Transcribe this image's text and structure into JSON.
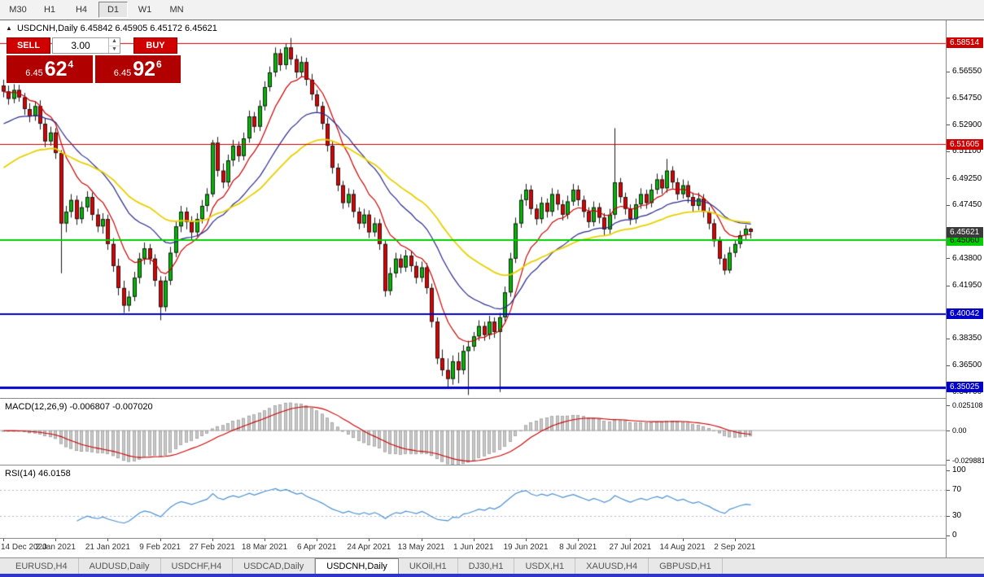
{
  "toolbar": {
    "timeframes": [
      "M30",
      "H1",
      "H4",
      "D1",
      "W1",
      "MN"
    ],
    "active": "D1"
  },
  "chart_header": {
    "collapse_icon": "▲",
    "text": "USDCNH,Daily 6.45842 6.45905 6.45172 6.45621"
  },
  "trade_panel": {
    "sell_label": "SELL",
    "buy_label": "BUY",
    "volume": "3.00",
    "sell_price_prefix": "6.45",
    "sell_price_main": "62",
    "sell_price_sup": "4",
    "buy_price_prefix": "6.45",
    "buy_price_main": "92",
    "buy_price_sup": "6"
  },
  "indicators": {
    "macd_label": "MACD(12,26,9) -0.006807 -0.007020",
    "rsi_label": "RSI(14) 46.0158"
  },
  "tabs": [
    "EURUSD,H4",
    "AUDUSD,Daily",
    "USDCHF,H4",
    "USDCAD,Daily",
    "USDCNH,Daily",
    "UKOil,H1",
    "DJ30,H1",
    "USDX,H1",
    "XAUUSD,H4",
    "GBPUSD,H1"
  ],
  "active_tab": "USDCNH,Daily",
  "colors": {
    "candle_up": "#00b800",
    "candle_down": "#e00000",
    "candle_outline": "#1a1a1a",
    "wick": "#1a1a1a",
    "macd_hist_fill": "#c9c9c9",
    "macd_hist_stroke": "#949494",
    "macd_signal": "#cc0000",
    "macd_zero": "#aaaaaa",
    "rsi_line": "#4a90d2",
    "rsi_levels": "#b4b4cc",
    "sell_button": "#d10000",
    "buy_button": "#d10000",
    "price_box": "#b00000",
    "current_badge_bg": "#3a3a3a",
    "taskbar_blue": "#2a35d4"
  },
  "chart_data": {
    "type": "candlestick",
    "symbol": "USDCNH",
    "timeframe": "Daily",
    "ohlc_display": {
      "open": "6.45842",
      "high": "6.45905",
      "low": "6.45172",
      "close": "6.45621"
    },
    "price_axis": {
      "min": 6.343,
      "max": 6.6005,
      "ticks": [
        {
          "price": 6.5655,
          "label": "6.56550"
        },
        {
          "price": 6.5475,
          "label": "6.54750"
        },
        {
          "price": 6.529,
          "label": "6.52900"
        },
        {
          "price": 6.511,
          "label": "6.51100"
        },
        {
          "price": 6.4925,
          "label": "6.49250"
        },
        {
          "price": 6.4745,
          "label": "6.47450"
        },
        {
          "price": 6.438,
          "label": "6.43800"
        },
        {
          "price": 6.4195,
          "label": "6.41950"
        },
        {
          "price": 6.3835,
          "label": "6.38350"
        },
        {
          "price": 6.365,
          "label": "6.36500"
        },
        {
          "price": 6.347,
          "label": "6.34700"
        }
      ]
    },
    "hlines": [
      {
        "price": 6.58514,
        "label": "6.58514",
        "color": "#cc0000",
        "width": 1,
        "text": "#ffffff"
      },
      {
        "price": 6.51605,
        "label": "6.51605",
        "color": "#cc0000",
        "width": 1,
        "text": "#ffffff"
      },
      {
        "price": 6.4506,
        "label": "6.45060",
        "color": "#00ce00",
        "width": 2,
        "text": "#000000"
      },
      {
        "price": 6.40042,
        "label": "6.40042",
        "color": "#0000c8",
        "width": 2,
        "text": "#ffffff"
      },
      {
        "price": 6.35025,
        "label": "6.35025",
        "color": "#0000c8",
        "width": 3,
        "text": "#ffffff"
      }
    ],
    "current_badge": {
      "price": 6.45621,
      "label": "6.45621"
    },
    "dates": [
      "14 Dec 2020",
      "2 Jan 2021",
      "21 Jan 2021",
      "9 Feb 2021",
      "27 Feb 2021",
      "18 Mar 2021",
      "6 Apr 2021",
      "24 Apr 2021",
      "13 May 2021",
      "1 Jun 2021",
      "19 Jun 2021",
      "8 Jul 2021",
      "27 Jul 2021",
      "14 Aug 2021",
      "2 Sep 2021"
    ],
    "date_step": 10,
    "ma": [
      {
        "period": 9,
        "color": "#cc0000",
        "width": 1.2,
        "seed": null
      },
      {
        "period": 22,
        "color": "#28288c",
        "width": 1.2,
        "seed": 6.53
      },
      {
        "period": 40,
        "color": "#e8d000",
        "width": 1.8,
        "seed": 6.5
      }
    ],
    "macd": {
      "fast": 12,
      "slow": 26,
      "signal": 9,
      "display": "-0.006807 -0.007020",
      "range": [
        -0.034,
        0.032
      ],
      "axis": [
        {
          "v": 0.025108,
          "label": "0.025108"
        },
        {
          "v": 0.0,
          "label": "0.00"
        },
        {
          "v": -0.029881,
          "label": "-0.029881"
        }
      ]
    },
    "rsi": {
      "period": 14,
      "value": "46.0158",
      "levels": [
        70,
        30
      ],
      "axis": [
        {
          "v": 100,
          "label": "100"
        },
        {
          "v": 70,
          "label": "70"
        },
        {
          "v": 30,
          "label": "30"
        },
        {
          "v": 0,
          "label": "0"
        }
      ]
    },
    "candles": [
      [
        6.556,
        6.56,
        6.548,
        6.552
      ],
      [
        6.552,
        6.556,
        6.543,
        6.547
      ],
      [
        6.547,
        6.557,
        6.544,
        6.553
      ],
      [
        6.553,
        6.5565,
        6.545,
        6.548
      ],
      [
        6.548,
        6.551,
        6.536,
        6.54
      ],
      [
        6.54,
        6.544,
        6.531,
        6.535
      ],
      [
        6.535,
        6.545,
        6.532,
        6.542
      ],
      [
        6.542,
        6.546,
        6.526,
        6.53
      ],
      [
        6.53,
        6.534,
        6.514,
        6.518
      ],
      [
        6.518,
        6.528,
        6.515,
        6.524
      ],
      [
        6.524,
        6.527,
        6.506,
        6.51
      ],
      [
        6.51,
        6.512,
        6.428,
        6.462
      ],
      [
        6.462,
        6.474,
        6.456,
        6.47
      ],
      [
        6.47,
        6.482,
        6.466,
        6.478
      ],
      [
        6.478,
        6.481,
        6.461,
        6.465
      ],
      [
        6.465,
        6.477,
        6.462,
        6.473
      ],
      [
        6.473,
        6.484,
        6.47,
        6.48
      ],
      [
        6.48,
        6.483,
        6.464,
        6.468
      ],
      [
        6.468,
        6.472,
        6.456,
        6.46
      ],
      [
        6.46,
        6.469,
        6.455,
        6.465
      ],
      [
        6.465,
        6.468,
        6.444,
        6.448
      ],
      [
        6.448,
        6.452,
        6.429,
        6.433
      ],
      [
        6.433,
        6.438,
        6.413,
        6.418
      ],
      [
        6.418,
        6.423,
        6.401,
        6.406
      ],
      [
        6.406,
        6.416,
        6.402,
        6.412
      ],
      [
        6.412,
        6.429,
        6.409,
        6.425
      ],
      [
        6.425,
        6.442,
        6.421,
        6.438
      ],
      [
        6.438,
        6.449,
        6.434,
        6.445
      ],
      [
        6.445,
        6.448,
        6.434,
        6.438
      ],
      [
        6.438,
        6.441,
        6.419,
        6.423
      ],
      [
        6.423,
        6.426,
        6.396,
        6.405
      ],
      [
        6.405,
        6.426,
        6.402,
        6.423
      ],
      [
        6.423,
        6.446,
        6.42,
        6.442
      ],
      [
        6.442,
        6.464,
        6.439,
        6.46
      ],
      [
        6.46,
        6.474,
        6.456,
        6.47
      ],
      [
        6.47,
        6.473,
        6.458,
        6.463
      ],
      [
        6.463,
        6.467,
        6.451,
        6.456
      ],
      [
        6.456,
        6.469,
        6.453,
        6.465
      ],
      [
        6.465,
        6.478,
        6.462,
        6.474
      ],
      [
        6.474,
        6.486,
        6.47,
        6.482
      ],
      [
        6.482,
        6.519,
        6.48,
        6.517
      ],
      [
        6.517,
        6.521,
        6.494,
        6.498
      ],
      [
        6.498,
        6.503,
        6.486,
        6.49
      ],
      [
        6.49,
        6.509,
        6.487,
        6.505
      ],
      [
        6.505,
        6.519,
        6.501,
        6.515
      ],
      [
        6.515,
        6.518,
        6.504,
        6.508
      ],
      [
        6.508,
        6.524,
        6.505,
        6.52
      ],
      [
        6.52,
        6.539,
        6.517,
        6.535
      ],
      [
        6.535,
        6.538,
        6.524,
        6.528
      ],
      [
        6.528,
        6.546,
        6.525,
        6.542
      ],
      [
        6.542,
        6.559,
        6.539,
        6.555
      ],
      [
        6.555,
        6.569,
        6.552,
        6.565
      ],
      [
        6.565,
        6.582,
        6.562,
        6.578
      ],
      [
        6.578,
        6.581,
        6.566,
        6.57
      ],
      [
        6.57,
        6.585,
        6.567,
        6.582
      ],
      [
        6.582,
        6.5885,
        6.57,
        6.574
      ],
      [
        6.574,
        6.577,
        6.561,
        6.565
      ],
      [
        6.565,
        6.576,
        6.562,
        6.572
      ],
      [
        6.572,
        6.575,
        6.556,
        6.56
      ],
      [
        6.56,
        6.564,
        6.546,
        6.55
      ],
      [
        6.55,
        6.553,
        6.538,
        6.542
      ],
      [
        6.542,
        6.545,
        6.526,
        6.53
      ],
      [
        6.53,
        6.534,
        6.511,
        6.515
      ],
      [
        6.515,
        6.518,
        6.496,
        6.5
      ],
      [
        6.5,
        6.503,
        6.484,
        6.488
      ],
      [
        6.488,
        6.491,
        6.472,
        6.476
      ],
      [
        6.476,
        6.486,
        6.473,
        6.482
      ],
      [
        6.482,
        6.485,
        6.466,
        6.47
      ],
      [
        6.47,
        6.473,
        6.458,
        6.462
      ],
      [
        6.462,
        6.472,
        6.459,
        6.468
      ],
      [
        6.468,
        6.471,
        6.452,
        6.456
      ],
      [
        6.456,
        6.466,
        6.453,
        6.462
      ],
      [
        6.462,
        6.465,
        6.444,
        6.448
      ],
      [
        6.448,
        6.451,
        6.412,
        6.416
      ],
      [
        6.416,
        6.432,
        6.413,
        6.428
      ],
      [
        6.428,
        6.442,
        6.425,
        6.438
      ],
      [
        6.438,
        6.441,
        6.428,
        6.432
      ],
      [
        6.432,
        6.444,
        6.429,
        6.44
      ],
      [
        6.44,
        6.443,
        6.429,
        6.433
      ],
      [
        6.433,
        6.436,
        6.421,
        6.425
      ],
      [
        6.425,
        6.436,
        6.422,
        6.432
      ],
      [
        6.432,
        6.435,
        6.414,
        6.418
      ],
      [
        6.418,
        6.421,
        6.391,
        6.395
      ],
      [
        6.395,
        6.398,
        6.366,
        6.37
      ],
      [
        6.37,
        6.376,
        6.358,
        6.362
      ],
      [
        6.362,
        6.37,
        6.3505,
        6.356
      ],
      [
        6.356,
        6.372,
        6.352,
        6.368
      ],
      [
        6.368,
        6.374,
        6.353,
        6.362
      ],
      [
        6.362,
        6.379,
        6.359,
        6.375
      ],
      [
        6.375,
        6.382,
        6.345,
        6.378
      ],
      [
        6.378,
        6.388,
        6.375,
        6.385
      ],
      [
        6.385,
        6.396,
        6.382,
        6.392
      ],
      [
        6.392,
        6.395,
        6.382,
        6.386
      ],
      [
        6.386,
        6.399,
        6.383,
        6.395
      ],
      [
        6.395,
        6.398,
        6.384,
        6.388
      ],
      [
        6.388,
        6.401,
        6.347,
        6.398
      ],
      [
        6.398,
        6.419,
        6.395,
        6.415
      ],
      [
        6.415,
        6.442,
        6.412,
        6.438
      ],
      [
        6.438,
        6.466,
        6.435,
        6.462
      ],
      [
        6.462,
        6.482,
        6.459,
        6.478
      ],
      [
        6.478,
        6.489,
        6.474,
        6.485
      ],
      [
        6.485,
        6.488,
        6.468,
        6.472
      ],
      [
        6.472,
        6.475,
        6.461,
        6.465
      ],
      [
        6.465,
        6.48,
        6.462,
        6.476
      ],
      [
        6.476,
        6.479,
        6.466,
        6.47
      ],
      [
        6.47,
        6.486,
        6.467,
        6.482
      ],
      [
        6.482,
        6.485,
        6.471,
        6.475
      ],
      [
        6.475,
        6.478,
        6.464,
        6.468
      ],
      [
        6.468,
        6.481,
        6.465,
        6.477
      ],
      [
        6.477,
        6.489,
        6.474,
        6.485
      ],
      [
        6.485,
        6.488,
        6.474,
        6.478
      ],
      [
        6.478,
        6.481,
        6.466,
        6.47
      ],
      [
        6.47,
        6.473,
        6.459,
        6.463
      ],
      [
        6.463,
        6.477,
        6.46,
        6.473
      ],
      [
        6.473,
        6.476,
        6.462,
        6.466
      ],
      [
        6.466,
        6.469,
        6.454,
        6.458
      ],
      [
        6.458,
        6.472,
        6.455,
        6.468
      ],
      [
        6.468,
        6.527,
        6.465,
        6.49
      ],
      [
        6.49,
        6.493,
        6.476,
        6.48
      ],
      [
        6.48,
        6.483,
        6.468,
        6.472
      ],
      [
        6.472,
        6.475,
        6.461,
        6.465
      ],
      [
        6.465,
        6.479,
        6.462,
        6.475
      ],
      [
        6.475,
        6.486,
        6.472,
        6.482
      ],
      [
        6.482,
        6.485,
        6.472,
        6.476
      ],
      [
        6.476,
        6.489,
        6.473,
        6.485
      ],
      [
        6.485,
        6.496,
        6.482,
        6.492
      ],
      [
        6.492,
        6.495,
        6.482,
        6.486
      ],
      [
        6.486,
        6.506,
        6.483,
        6.498
      ],
      [
        6.498,
        6.501,
        6.486,
        6.49
      ],
      [
        6.49,
        6.493,
        6.478,
        6.482
      ],
      [
        6.482,
        6.492,
        6.479,
        6.488
      ],
      [
        6.488,
        6.491,
        6.476,
        6.48
      ],
      [
        6.48,
        6.483,
        6.47,
        6.474
      ],
      [
        6.474,
        6.483,
        6.471,
        6.479
      ],
      [
        6.479,
        6.482,
        6.466,
        6.47
      ],
      [
        6.47,
        6.473,
        6.458,
        6.462
      ],
      [
        6.462,
        6.465,
        6.446,
        6.45
      ],
      [
        6.45,
        6.453,
        6.434,
        6.438
      ],
      [
        6.438,
        6.441,
        6.427,
        6.43
      ],
      [
        6.43,
        6.446,
        6.428,
        6.442
      ],
      [
        6.442,
        6.451,
        6.439,
        6.448
      ],
      [
        6.448,
        6.457,
        6.445,
        6.454
      ],
      [
        6.454,
        6.461,
        6.451,
        6.4584
      ],
      [
        6.45842,
        6.45905,
        6.45172,
        6.45621
      ]
    ]
  }
}
